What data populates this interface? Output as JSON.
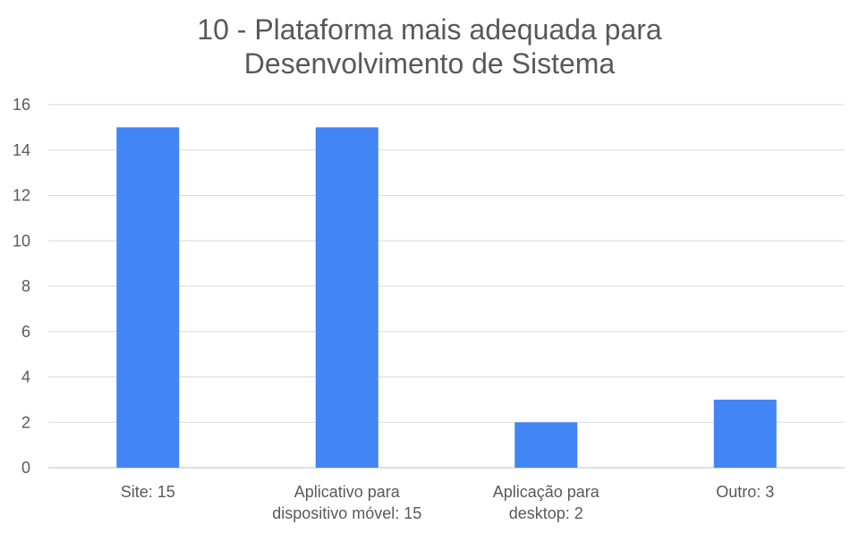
{
  "chart_data": {
    "type": "bar",
    "title_lines": [
      "10 - Plataforma mais adequada para",
      "Desenvolvimento de Sistema"
    ],
    "categories": [
      [
        "Site: 15"
      ],
      [
        "Aplicativo para",
        "dispositivo móvel: 15"
      ],
      [
        "Aplicação para",
        "desktop: 2"
      ],
      [
        "Outro: 3"
      ]
    ],
    "values": [
      15,
      15,
      2,
      3
    ],
    "ylim": [
      0,
      16
    ],
    "yticks": [
      0,
      2,
      4,
      6,
      8,
      10,
      12,
      14,
      16
    ],
    "grid": true,
    "bar_color": "#4285F4",
    "grid_color": "#D9D9D9",
    "text_color": "#595959"
  }
}
